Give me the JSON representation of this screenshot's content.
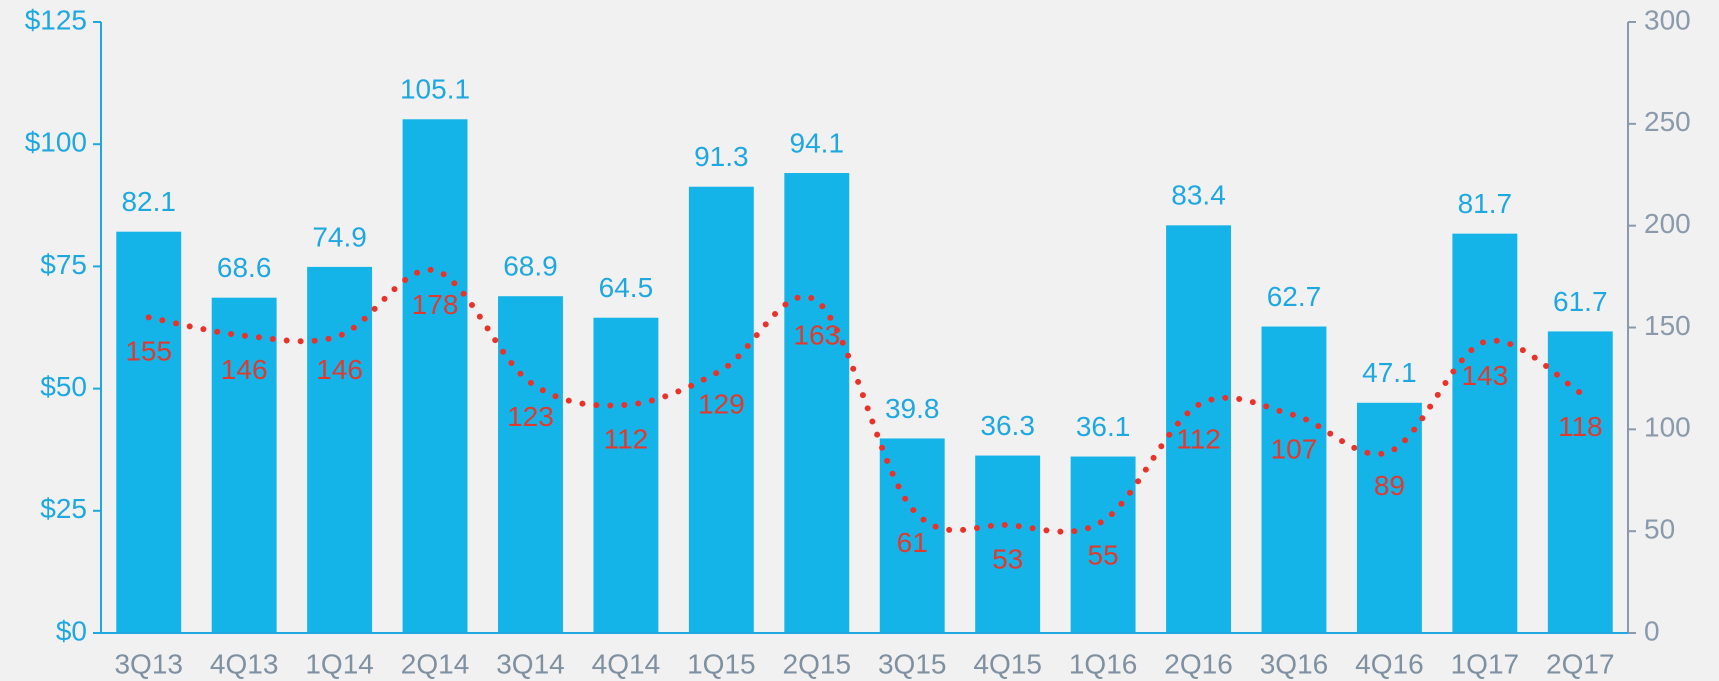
{
  "chart_data": {
    "type": "bar",
    "categories": [
      "3Q13",
      "4Q13",
      "1Q14",
      "2Q14",
      "3Q14",
      "4Q14",
      "1Q15",
      "2Q15",
      "3Q15",
      "4Q15",
      "1Q16",
      "2Q16",
      "3Q16",
      "4Q16",
      "1Q17",
      "2Q17"
    ],
    "series": [
      {
        "type": "bar",
        "color": "#14b4e8",
        "values": [
          82.1,
          68.6,
          74.9,
          105.1,
          68.9,
          64.5,
          91.3,
          94.1,
          39.8,
          36.3,
          36.1,
          83.4,
          62.7,
          47.1,
          81.7,
          61.7
        ]
      },
      {
        "type": "line",
        "axis": "y2",
        "color": "#e8322a",
        "values": [
          155,
          146,
          146,
          178,
          123,
          112,
          129,
          163,
          61,
          53,
          55,
          112,
          107,
          89,
          143,
          118
        ]
      }
    ],
    "ylim": [
      0,
      125
    ],
    "yticks": [
      {
        "value": 0,
        "label": "$0"
      },
      {
        "value": 25,
        "label": "$25"
      },
      {
        "value": 50,
        "label": "$50"
      },
      {
        "value": 75,
        "label": "$75"
      },
      {
        "value": 100,
        "label": "$100"
      },
      {
        "value": 125,
        "label": "$125"
      }
    ],
    "y2lim": [
      0,
      300
    ],
    "y2ticks": [
      0,
      50,
      100,
      150,
      200,
      250,
      300
    ]
  }
}
